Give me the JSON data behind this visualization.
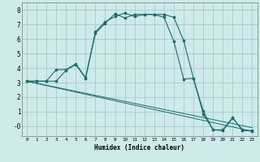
{
  "xlabel": "Humidex (Indice chaleur)",
  "bg_color": "#ceeaea",
  "grid_color": "#a8cccc",
  "line_color": "#1a6e6a",
  "xlim": [
    -0.5,
    23.5
  ],
  "ylim": [
    -0.7,
    8.5
  ],
  "xticks": [
    0,
    1,
    2,
    3,
    4,
    5,
    6,
    7,
    8,
    9,
    10,
    11,
    12,
    13,
    14,
    15,
    16,
    17,
    18,
    19,
    20,
    21,
    22,
    23
  ],
  "yticks": [
    0,
    1,
    2,
    3,
    4,
    5,
    6,
    7,
    8
  ],
  "ytick_labels": [
    "-0",
    "1",
    "2",
    "3",
    "4",
    "5",
    "6",
    "7",
    "8"
  ],
  "curve1_x": [
    0,
    1,
    2,
    3,
    4,
    5,
    6,
    7,
    8,
    9,
    10,
    11,
    12,
    13,
    14,
    15,
    16,
    17,
    18,
    19,
    20,
    21,
    22,
    23
  ],
  "curve1_y": [
    3.1,
    3.1,
    3.1,
    3.9,
    3.9,
    4.3,
    3.35,
    6.5,
    7.2,
    7.55,
    7.8,
    7.55,
    7.7,
    7.7,
    7.7,
    7.5,
    5.9,
    3.3,
    1.05,
    -0.25,
    -0.3,
    0.55,
    -0.25,
    -0.35
  ],
  "curve2_x": [
    0,
    1,
    2,
    3,
    4,
    5,
    6,
    7,
    8,
    9,
    10,
    11,
    12,
    13,
    14,
    15,
    16,
    17,
    18,
    19,
    20,
    21,
    22,
    23
  ],
  "curve2_y": [
    3.1,
    3.1,
    3.1,
    3.1,
    3.85,
    4.25,
    3.3,
    6.4,
    7.1,
    7.75,
    7.45,
    7.7,
    7.7,
    7.7,
    7.5,
    5.85,
    3.25,
    3.3,
    0.85,
    -0.25,
    -0.25,
    0.6,
    -0.3,
    -0.3
  ],
  "line1_x": [
    0,
    23
  ],
  "line1_y": [
    3.1,
    -0.35
  ],
  "line2_x": [
    0,
    23
  ],
  "line2_y": [
    3.1,
    -0.1
  ]
}
